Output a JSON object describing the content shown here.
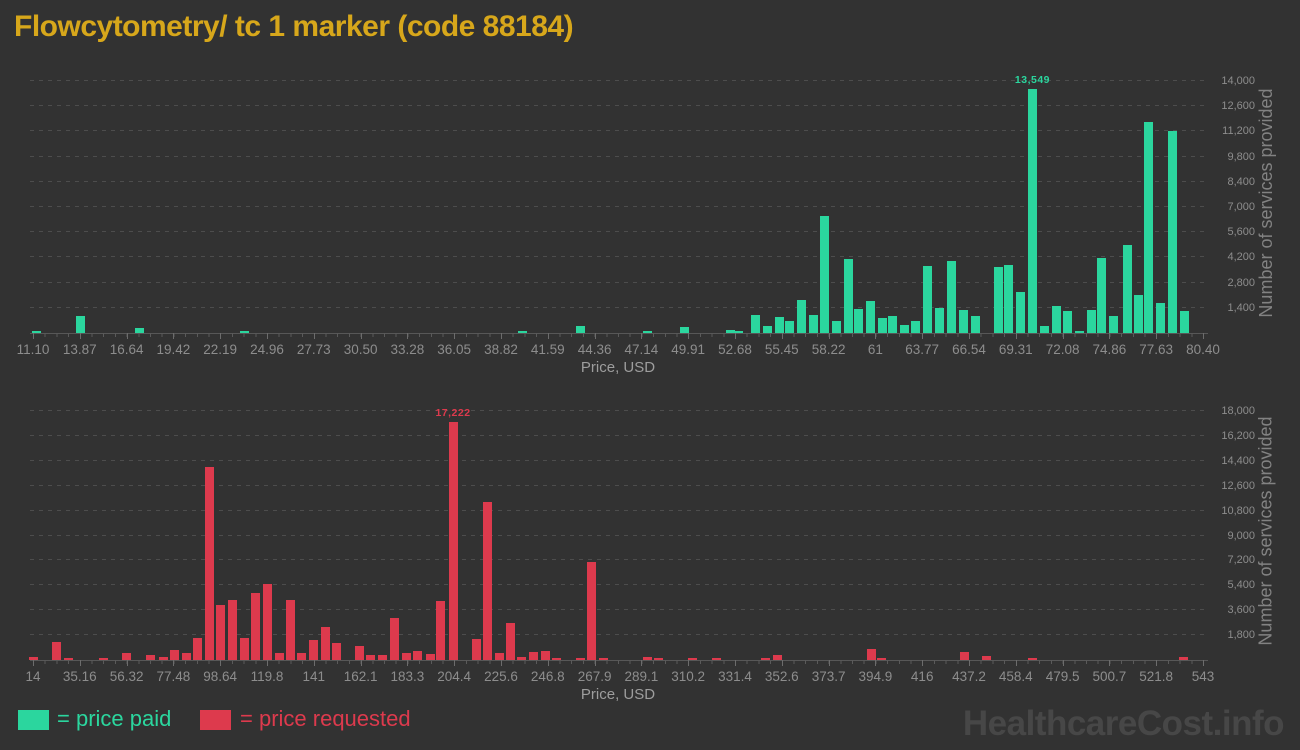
{
  "title": "Flowcytometry/ tc 1 marker (code 88184)",
  "watermark": "HealthcareCost.info",
  "legend": {
    "paid_label": "= price paid",
    "requested_label": "= price requested"
  },
  "colors": {
    "background": "#323232",
    "title": "#d7a71b",
    "paid": "#2bd69e",
    "requested": "#dd3a4d",
    "tick_text": "#8d8d8d",
    "grid": "#4d4d4d",
    "watermark": "#474747"
  },
  "chart_data": [
    {
      "type": "bar",
      "name": "price-paid-histogram",
      "series_label": "price paid",
      "color": "#2bd69e",
      "xlabel": "Price, USD",
      "ylabel": "Number of services provided",
      "x_min": 11.1,
      "x_max": 80.4,
      "grid": true,
      "x_ticks": [
        "11.10",
        "13.87",
        "16.64",
        "19.42",
        "22.19",
        "24.96",
        "27.73",
        "30.50",
        "33.28",
        "36.05",
        "38.82",
        "41.59",
        "44.36",
        "47.14",
        "49.91",
        "52.68",
        "55.45",
        "58.22",
        "61",
        "63.77",
        "66.54",
        "69.31",
        "72.08",
        "74.86",
        "77.63",
        "80.40"
      ],
      "y_ticks": [
        {
          "v": 1400,
          "label": "1,400"
        },
        {
          "v": 2800,
          "label": "2,800"
        },
        {
          "v": 4200,
          "label": "4,200"
        },
        {
          "v": 5600,
          "label": "5,600"
        },
        {
          "v": 7000,
          "label": "7,000"
        },
        {
          "v": 8400,
          "label": "8,400"
        },
        {
          "v": 9800,
          "label": "9,800"
        },
        {
          "v": 11200,
          "label": "11,200"
        },
        {
          "v": 12600,
          "label": "12,600"
        },
        {
          "v": 14000,
          "label": "14,000"
        }
      ],
      "y_max_tick": 14000,
      "peak_label": {
        "text": "13,549",
        "price": 70.3
      },
      "bars": [
        [
          11.3,
          110
        ],
        [
          13.9,
          950
        ],
        [
          17.4,
          300
        ],
        [
          23.6,
          70
        ],
        [
          40.1,
          60
        ],
        [
          43.5,
          370
        ],
        [
          47.5,
          90
        ],
        [
          49.7,
          310
        ],
        [
          52.4,
          160
        ],
        [
          52.9,
          80
        ],
        [
          53.9,
          1000
        ],
        [
          54.6,
          370
        ],
        [
          55.3,
          900
        ],
        [
          55.9,
          690
        ],
        [
          56.6,
          1850
        ],
        [
          57.3,
          1000
        ],
        [
          58.0,
          6500
        ],
        [
          58.7,
          690
        ],
        [
          59.4,
          4100
        ],
        [
          60.0,
          1330
        ],
        [
          60.7,
          1760
        ],
        [
          61.4,
          830
        ],
        [
          62.0,
          930
        ],
        [
          62.7,
          460
        ],
        [
          63.4,
          690
        ],
        [
          64.1,
          3750
        ],
        [
          64.8,
          1400
        ],
        [
          65.5,
          4000
        ],
        [
          66.2,
          1300
        ],
        [
          66.9,
          960
        ],
        [
          68.3,
          3650
        ],
        [
          68.9,
          3800
        ],
        [
          69.6,
          2300
        ],
        [
          70.3,
          13549
        ],
        [
          71.0,
          400
        ],
        [
          71.7,
          1500
        ],
        [
          72.4,
          1250
        ],
        [
          73.1,
          100
        ],
        [
          73.8,
          1300
        ],
        [
          74.4,
          4150
        ],
        [
          75.1,
          970
        ],
        [
          75.9,
          4900
        ],
        [
          76.6,
          2100
        ],
        [
          77.2,
          11750
        ],
        [
          77.9,
          1650
        ],
        [
          78.6,
          11230
        ],
        [
          79.3,
          1200
        ]
      ]
    },
    {
      "type": "bar",
      "name": "price-requested-histogram",
      "series_label": "price requested",
      "color": "#dd3a4d",
      "xlabel": "Price, USD",
      "ylabel": "Number of services provided",
      "x_min": 14,
      "x_max": 543,
      "grid": true,
      "x_ticks": [
        "14",
        "35.16",
        "56.32",
        "77.48",
        "98.64",
        "119.8",
        "141",
        "162.1",
        "183.3",
        "204.4",
        "225.6",
        "246.8",
        "267.9",
        "289.1",
        "310.2",
        "331.4",
        "352.6",
        "373.7",
        "394.9",
        "416",
        "437.2",
        "458.4",
        "479.5",
        "500.7",
        "521.8",
        "543"
      ],
      "y_ticks": [
        {
          "v": 1800,
          "label": "1,800"
        },
        {
          "v": 3600,
          "label": "3,600"
        },
        {
          "v": 5400,
          "label": "5,400"
        },
        {
          "v": 7200,
          "label": "7,200"
        },
        {
          "v": 9000,
          "label": "9,000"
        },
        {
          "v": 10800,
          "label": "10,800"
        },
        {
          "v": 12600,
          "label": "12,600"
        },
        {
          "v": 14400,
          "label": "14,400"
        },
        {
          "v": 16200,
          "label": "16,200"
        },
        {
          "v": 18000,
          "label": "18,000"
        }
      ],
      "y_max_tick": 18000,
      "peak_label": {
        "text": "17,222",
        "price": 203.9
      },
      "bars": [
        [
          14.3,
          240
        ],
        [
          24.8,
          1300
        ],
        [
          30,
          120
        ],
        [
          46,
          140
        ],
        [
          56.5,
          520
        ],
        [
          67,
          360
        ],
        [
          72.8,
          240
        ],
        [
          78.2,
          720
        ],
        [
          83.2,
          520
        ],
        [
          88.6,
          1600
        ],
        [
          94,
          13980
        ],
        [
          99,
          4000
        ],
        [
          104.4,
          4360
        ],
        [
          109.8,
          1600
        ],
        [
          114.8,
          4840
        ],
        [
          120.2,
          5530
        ],
        [
          125.6,
          480
        ],
        [
          130.6,
          4360
        ],
        [
          135.6,
          520
        ],
        [
          141,
          1480
        ],
        [
          146.4,
          2380
        ],
        [
          151.4,
          1200
        ],
        [
          161.4,
          1000
        ],
        [
          166.8,
          360
        ],
        [
          172.2,
          360
        ],
        [
          177.6,
          3050
        ],
        [
          183,
          480
        ],
        [
          188,
          670
        ],
        [
          193.5,
          430
        ],
        [
          198.4,
          4240
        ],
        [
          203.9,
          17222
        ],
        [
          214.3,
          1500
        ],
        [
          219.7,
          11400
        ],
        [
          224.7,
          520
        ],
        [
          230,
          2700
        ],
        [
          235,
          190
        ],
        [
          240.4,
          600
        ],
        [
          245.8,
          670
        ],
        [
          250.8,
          120
        ],
        [
          261.6,
          100
        ],
        [
          266.6,
          7100
        ],
        [
          272,
          100
        ],
        [
          291.8,
          190
        ],
        [
          297,
          120
        ],
        [
          312,
          120
        ],
        [
          323,
          120
        ],
        [
          345,
          120
        ],
        [
          350.7,
          340
        ],
        [
          393,
          800
        ],
        [
          397.5,
          180
        ],
        [
          435,
          600
        ],
        [
          445,
          290
        ],
        [
          466,
          110
        ],
        [
          534,
          240
        ]
      ]
    }
  ]
}
